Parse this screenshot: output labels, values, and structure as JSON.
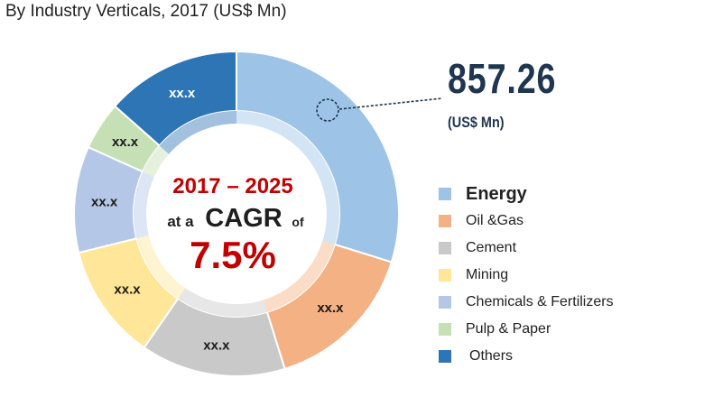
{
  "header": {
    "subtitle": "By Industry Verticals, 2017 (US$ Mn)"
  },
  "center": {
    "period": "2017 – 2025",
    "at_a": "at a",
    "cagr": "CAGR",
    "of": "of",
    "rate": "7.5%"
  },
  "callout": {
    "value": "857.26",
    "unit": "(US$ Mn)"
  },
  "colors": {
    "energy": "#9dc3e6",
    "oil_gas": "#f4b183",
    "cement": "#c9c9c9",
    "mining": "#ffe699",
    "chemicals": "#b4c7e7",
    "pulp": "#c5e0b4",
    "others": "#2e75b6",
    "center_text_red": "#c00000",
    "callout_navy": "#1f3550"
  },
  "chart_data": {
    "type": "pie",
    "title": "",
    "categories": [
      "Energy",
      "Oil &Gas",
      "Cement",
      "Mining",
      "Chemicals & Fertilizers",
      "Pulp & Paper",
      "Others"
    ],
    "values": [
      31,
      16,
      15,
      12,
      11,
      5,
      14
    ],
    "data_labels": [
      "",
      "xx.x",
      "xx.x",
      "xx.x",
      "xx.x",
      "xx.x",
      "xx.x"
    ],
    "colors": [
      "#9dc3e6",
      "#f4b183",
      "#c9c9c9",
      "#ffe699",
      "#b4c7e7",
      "#c5e0b4",
      "#2e75b6"
    ],
    "start_angle_deg": 0,
    "direction": "clockwise",
    "donut": true,
    "legend": "right"
  }
}
